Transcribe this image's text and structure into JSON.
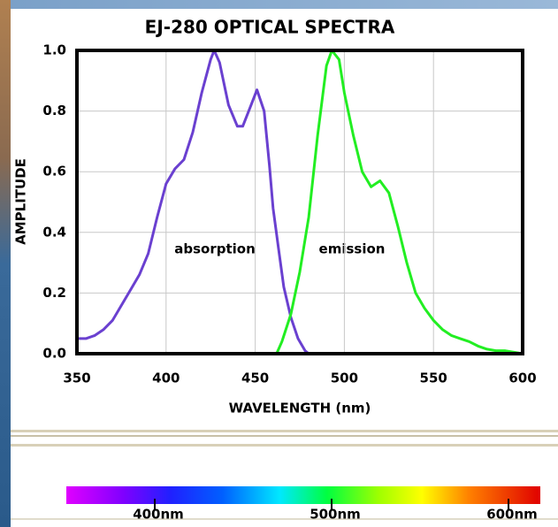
{
  "chart_data": [
    {
      "type": "line",
      "title": "EJ-280 OPTICAL SPECTRA",
      "xlabel": "WAVELENGTH (nm)",
      "ylabel": "AMPLITUDE",
      "xlim": [
        350,
        600
      ],
      "xticks": [
        350,
        400,
        450,
        500,
        550,
        600
      ],
      "ylim": [
        0,
        1
      ],
      "yticks": [
        {
          "value": 0,
          "label": "0.0"
        },
        {
          "value": 0.2,
          "label": "0.2"
        },
        {
          "value": 0.4,
          "label": "0.4"
        },
        {
          "value": 0.6,
          "label": "0.6"
        },
        {
          "value": 0.8,
          "label": "0.8"
        },
        {
          "value": 1,
          "label": "1.0"
        }
      ],
      "grid": true,
      "series": [
        {
          "name": "absorption",
          "color": "#6a40d0",
          "x": [
            350,
            355,
            360,
            365,
            370,
            375,
            380,
            385,
            390,
            395,
            400,
            405,
            410,
            415,
            420,
            425,
            427,
            430,
            435,
            440,
            443,
            447,
            451,
            455,
            458,
            460,
            463,
            466,
            470,
            474,
            478,
            480
          ],
          "values": [
            0.05,
            0.05,
            0.06,
            0.08,
            0.11,
            0.16,
            0.21,
            0.26,
            0.33,
            0.45,
            0.56,
            0.61,
            0.64,
            0.73,
            0.86,
            0.97,
            1.0,
            0.96,
            0.82,
            0.75,
            0.75,
            0.81,
            0.87,
            0.8,
            0.62,
            0.48,
            0.35,
            0.22,
            0.12,
            0.05,
            0.01,
            0.0
          ]
        },
        {
          "name": "emission",
          "color": "#22ee22",
          "x": [
            462,
            465,
            470,
            475,
            480,
            485,
            490,
            493,
            497,
            500,
            505,
            510,
            515,
            520,
            525,
            530,
            535,
            540,
            545,
            550,
            555,
            560,
            565,
            570,
            575,
            580,
            585,
            590,
            600
          ],
          "values": [
            0.0,
            0.04,
            0.13,
            0.27,
            0.45,
            0.72,
            0.95,
            1.0,
            0.97,
            0.86,
            0.72,
            0.6,
            0.55,
            0.57,
            0.53,
            0.42,
            0.3,
            0.2,
            0.15,
            0.11,
            0.08,
            0.06,
            0.05,
            0.04,
            0.025,
            0.015,
            0.01,
            0.01,
            0.0
          ]
        }
      ]
    },
    {
      "type": "colorbar",
      "xlim": [
        350,
        618
      ],
      "xticks": [
        {
          "value": 400,
          "label": "400nm"
        },
        {
          "value": 500,
          "label": "500nm"
        },
        {
          "value": 600,
          "label": "600nm"
        }
      ]
    }
  ]
}
